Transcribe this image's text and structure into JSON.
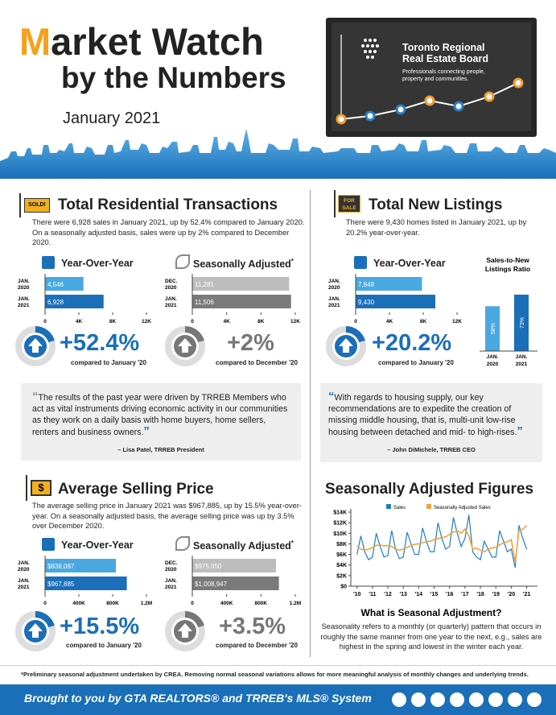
{
  "header": {
    "title_line1": "Market Watch",
    "title_line2": "by the Numbers",
    "date": "January 2021",
    "board_name_line1": "Toronto Regional",
    "board_name_line2": "Real Estate Board",
    "board_tagline_line1": "Professionals connecting people,",
    "board_tagline_line2": "property and communities."
  },
  "transactions": {
    "sign": "SOLD!",
    "title": "Total Residential Transactions",
    "text": "There were 6,928 sales in January 2021, up by 52.4% compared to January 2020. On a seasonally adjusted basis, sales were up by 2% compared to December 2020.",
    "yoy": {
      "title": "Year-Over-Year",
      "colors": [
        "#4aa8e0",
        "#1a6fb8"
      ],
      "bars": [
        {
          "label_line1": "JAN.",
          "label_line2": "2020",
          "value": 4546,
          "value_label": "4,546"
        },
        {
          "label_line1": "JAN.",
          "label_line2": "2021",
          "value": 6928,
          "value_label": "6,928"
        }
      ],
      "xlim": [
        0,
        12000
      ],
      "xticks": [
        0,
        {
          "value": 4000,
          "label": "4K"
        },
        {
          "value": 8000,
          "label": "8K"
        },
        {
          "value": 12000,
          "label": "12K"
        }
      ],
      "change": "+52.4%",
      "compared": "compared to January '20"
    },
    "sa": {
      "title": "Seasonally Adjusted",
      "asterisk": "*",
      "colors": [
        "#bdbdbd",
        "#7a7a7a"
      ],
      "bars": [
        {
          "label_line1": "DEC.",
          "label_line2": "2020",
          "value": 11281,
          "value_label": "11,281"
        },
        {
          "label_line1": "JAN.",
          "label_line2": "2021",
          "value": 11506,
          "value_label": "11,506"
        }
      ],
      "xlim": [
        0,
        12000
      ],
      "xticks": [
        0,
        {
          "value": 4000,
          "label": "4K"
        },
        {
          "value": 8000,
          "label": "8K"
        },
        {
          "value": 12000,
          "label": "12K"
        }
      ],
      "change": "+2%",
      "compared": "compared to December '20"
    },
    "quote": "The results of the past year were driven by TRREB Members who act as vital instruments driving economic activity in our communities as they work on a daily basis with home buyers, home sellers, renters and business owners.",
    "quote_source": "– Lisa Patel, TRREB President"
  },
  "listings": {
    "sign_line1": "FOR",
    "sign_line2": "SALE",
    "title": "Total New Listings",
    "text": "There were 9,430 homes listed in January 2021, up by 20.2% year-over-year.",
    "yoy": {
      "title": "Year-Over-Year",
      "colors": [
        "#4aa8e0",
        "#1a6fb8"
      ],
      "bars": [
        {
          "label_line1": "JAN.",
          "label_line2": "2020",
          "value": 7848,
          "value_label": "7,848"
        },
        {
          "label_line1": "JAN.",
          "label_line2": "2021",
          "value": 9430,
          "value_label": "9,430"
        }
      ],
      "xlim": [
        0,
        12000
      ],
      "xticks": [
        0,
        {
          "value": 4000,
          "label": "4K"
        },
        {
          "value": 8000,
          "label": "8K"
        },
        {
          "value": 12000,
          "label": "12K"
        }
      ],
      "change": "+20.2%",
      "compared": "compared to January '20"
    },
    "ratio": {
      "title_line1": "Sales-to-New",
      "title_line2": "Listings Ratio",
      "colors": [
        "#4aa8e0",
        "#1a6fb8"
      ],
      "ylim": [
        0,
        100
      ],
      "bars": [
        {
          "label_line1": "JAN.",
          "label_line2": "2020",
          "value": 58,
          "value_label": "58%"
        },
        {
          "label_line1": "JAN.",
          "label_line2": "2021",
          "value": 73,
          "value_label": "73%"
        }
      ]
    },
    "quote": "With regards to housing supply, our key recommendations are to expedite the creation of missing middle housing, that is, multi-unit low-rise housing between detached and mid- to high-rises.",
    "quote_source": "– John DiMichele, TRREB CEO"
  },
  "price": {
    "sign": "$",
    "title": "Average Selling Price",
    "text": "The average selling price in January 2021 was $967,885, up by 15.5% year-over-year. On a seasonally adjusted basis, the average selling price was up by 3.5% over December 2020.",
    "yoy": {
      "title": "Year-Over-Year",
      "colors": [
        "#4aa8e0",
        "#1a6fb8"
      ],
      "bars": [
        {
          "label_line1": "JAN.",
          "label_line2": "2020",
          "value": 838087,
          "value_label": "$838,087"
        },
        {
          "label_line1": "JAN.",
          "label_line2": "2021",
          "value": 967885,
          "value_label": "$967,885"
        }
      ],
      "xlim": [
        0,
        1200000
      ],
      "xticks": [
        0,
        {
          "value": 400000,
          "label": "400K"
        },
        {
          "value": 800000,
          "label": "800K"
        },
        {
          "value": 1200000,
          "label": "1.2M"
        }
      ],
      "change": "+15.5%",
      "compared": "compared to January '20"
    },
    "sa": {
      "title": "Seasonally Adjusted",
      "asterisk": "*",
      "colors": [
        "#bdbdbd",
        "#7a7a7a"
      ],
      "bars": [
        {
          "label_line1": "DEC.",
          "label_line2": "2020",
          "value": 975050,
          "value_label": "$975,050"
        },
        {
          "label_line1": "JAN.",
          "label_line2": "2021",
          "value": 1008947,
          "value_label": "$1,008,947"
        }
      ],
      "xlim": [
        0,
        1200000
      ],
      "xticks": [
        0,
        {
          "value": 400000,
          "label": "400K"
        },
        {
          "value": 800000,
          "label": "800K"
        },
        {
          "value": 1200000,
          "label": "1.2M"
        }
      ],
      "change": "+3.5%",
      "compared": "compared to December '20"
    }
  },
  "seasonal": {
    "title": "Seasonally Adjusted Figures",
    "chart_data": {
      "type": "line",
      "x": [
        2010,
        2010.25,
        2010.5,
        2010.75,
        2011,
        2011.25,
        2011.5,
        2011.75,
        2012,
        2012.25,
        2012.5,
        2012.75,
        2013,
        2013.25,
        2013.5,
        2013.75,
        2014,
        2014.25,
        2014.5,
        2014.75,
        2015,
        2015.25,
        2015.5,
        2015.75,
        2016,
        2016.25,
        2016.5,
        2016.75,
        2017,
        2017.25,
        2017.5,
        2017.75,
        2018,
        2018.25,
        2018.5,
        2018.75,
        2019,
        2019.25,
        2019.5,
        2019.75,
        2020,
        2020.25,
        2020.5,
        2020.75,
        2021
      ],
      "series": [
        {
          "name": "Sales",
          "color": "#1f7fc4",
          "values": [
            6000,
            9500,
            6500,
            5000,
            5500,
            10000,
            7500,
            5500,
            5800,
            10500,
            7000,
            5200,
            5500,
            10200,
            8000,
            6000,
            6000,
            11000,
            8500,
            6500,
            6500,
            12000,
            9000,
            7000,
            7500,
            13000,
            10000,
            7500,
            9000,
            13500,
            6500,
            5500,
            5000,
            8500,
            7000,
            5500,
            5500,
            10500,
            8500,
            6500,
            7000,
            3500,
            11500,
            9000,
            7000
          ]
        },
        {
          "name": "Seasonally Adjusted Sales",
          "color": "#f2a43a",
          "values": [
            7500,
            7000,
            6800,
            7000,
            7300,
            7700,
            7800,
            7600,
            7700,
            7500,
            7000,
            6800,
            7000,
            7300,
            7700,
            7900,
            8000,
            8200,
            8400,
            8500,
            8800,
            9000,
            9200,
            9300,
            9800,
            10200,
            10500,
            10000,
            10800,
            9500,
            7000,
            7200,
            6800,
            6500,
            7000,
            7200,
            7400,
            7800,
            8200,
            8400,
            8800,
            4500,
            10500,
            10800,
            11500
          ]
        }
      ],
      "xlim": [
        2009.6,
        2021.7
      ],
      "xticks": [
        {
          "value": 2010,
          "label": "'10"
        },
        {
          "value": 2011,
          "label": "'11"
        },
        {
          "value": 2012,
          "label": "'12"
        },
        {
          "value": 2013,
          "label": "'13"
        },
        {
          "value": 2014,
          "label": "'14"
        },
        {
          "value": 2015,
          "label": "'15"
        },
        {
          "value": 2016,
          "label": "'16"
        },
        {
          "value": 2017,
          "label": "'17"
        },
        {
          "value": 2018,
          "label": "'18"
        },
        {
          "value": 2019,
          "label": "'19"
        },
        {
          "value": 2020,
          "label": "'20"
        },
        {
          "value": 2021,
          "label": "'21"
        }
      ],
      "ylim": [
        0,
        14000
      ],
      "yticks": [
        {
          "value": 0,
          "label": "$0"
        },
        {
          "value": 2000,
          "label": "$2K"
        },
        {
          "value": 4000,
          "label": "$4K"
        },
        {
          "value": 6000,
          "label": "$6K"
        },
        {
          "value": 8000,
          "label": "$8K"
        },
        {
          "value": 10000,
          "label": "$10K"
        },
        {
          "value": 12000,
          "label": "$12K"
        },
        {
          "value": 14000,
          "label": "$14K"
        }
      ],
      "legend": "top"
    },
    "question": "What is Seasonal Adjustment?",
    "answer": "Seasonality refers to a monthly (or quarterly) pattern that occurs in roughly the same manner from one year to the next, e.g., sales are highest in the spring and lowest in the winter each year."
  },
  "footer": {
    "note": "*Preliminary seasonal adjustment undertaken by CREA. Removing normal seasonal variations allows for more meaningful analysis of monthly changes and underlying trends.",
    "banner": "Brought to you by GTA REALTORS® and TRREB's MLS® System"
  }
}
